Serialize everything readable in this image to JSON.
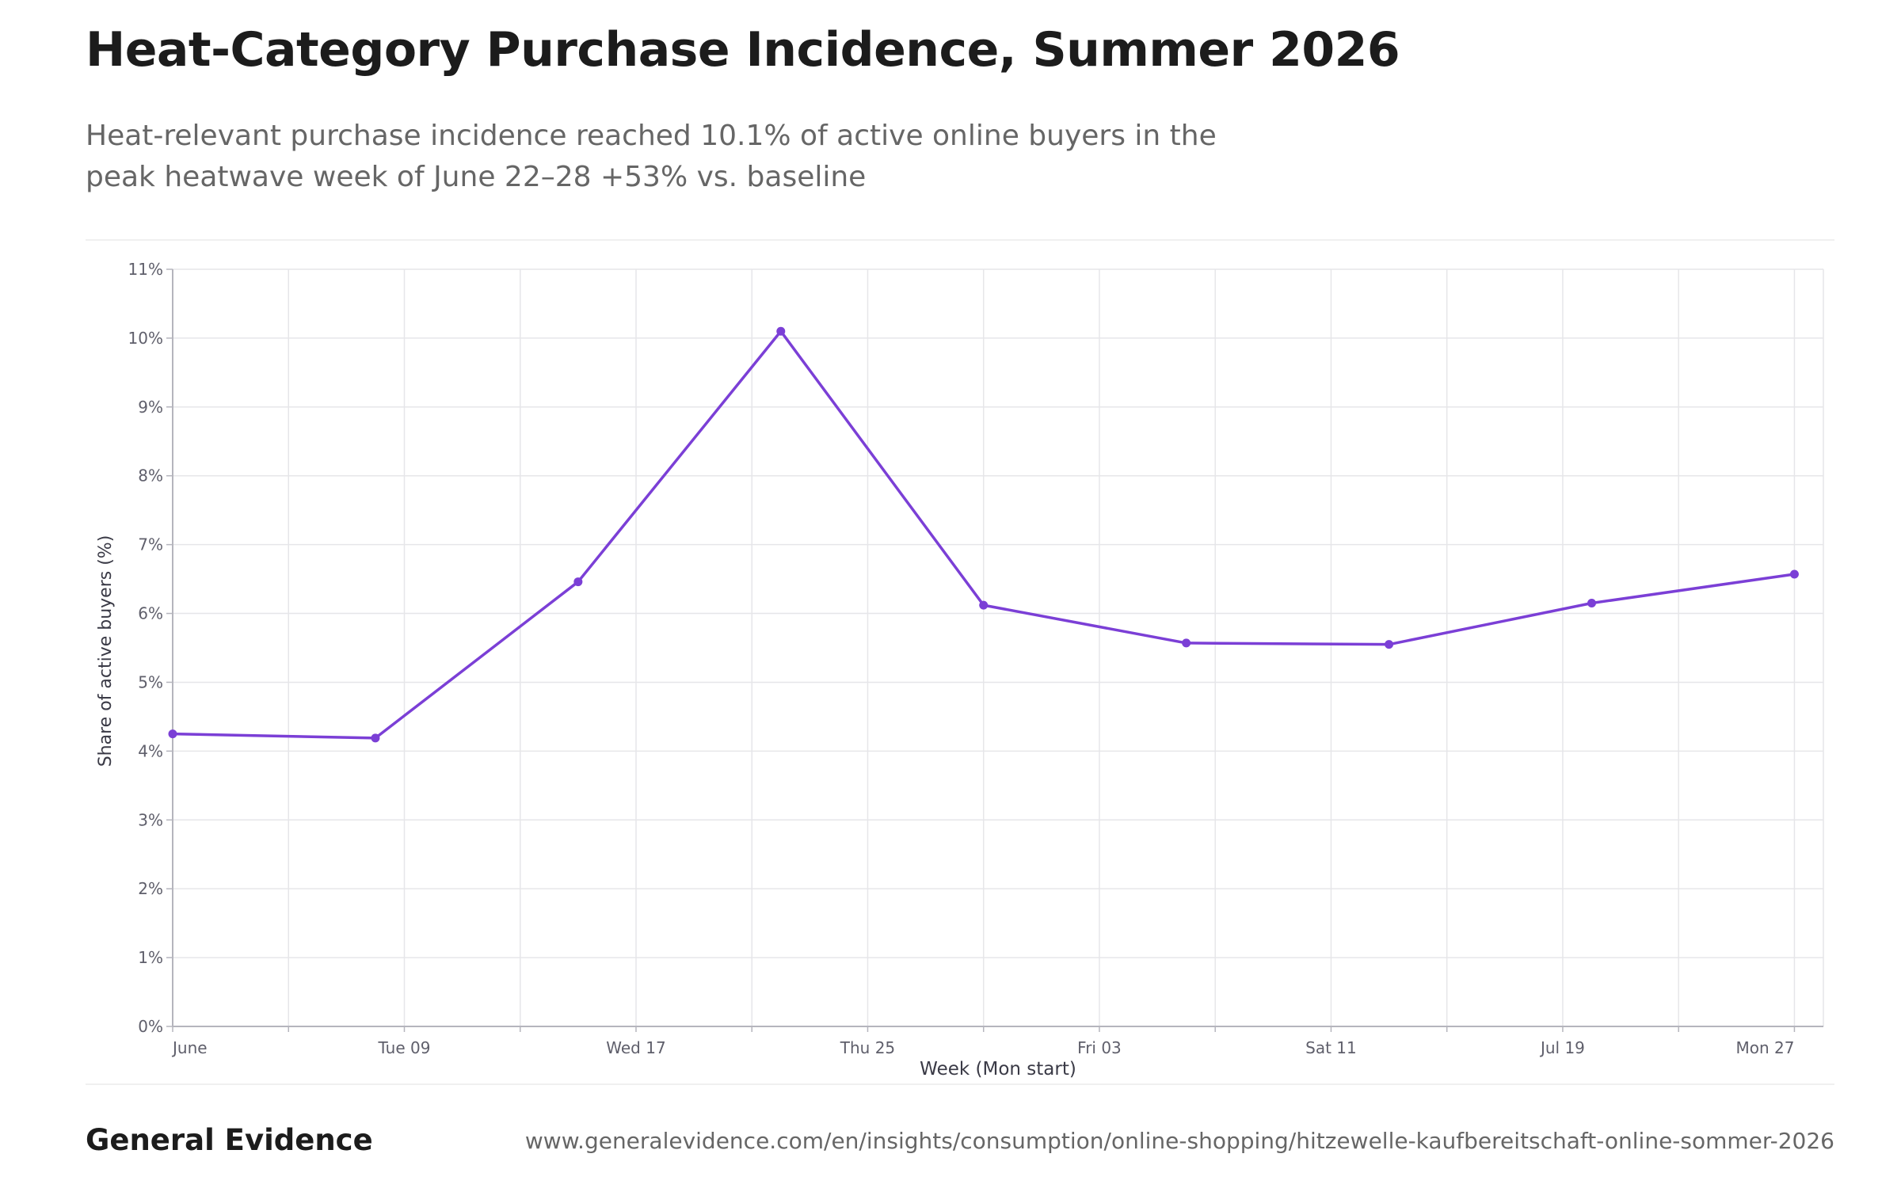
{
  "header": {
    "title": "Heat-Category Purchase Incidence, Summer 2026",
    "subtitle": "Heat-relevant purchase incidence reached 10.1% of active online buyers in the peak heatwave week of June 22–28 +53% vs. baseline"
  },
  "footer": {
    "brand": "General Evidence",
    "source": "www.generalevidence.com/en/insights/consumption/online-shopping/hitzewelle-kaufbereitschaft-online-sommer-2026"
  },
  "chart_data": {
    "type": "line",
    "xlabel": "Week (Mon start)",
    "ylabel": "Share of active buyers (%)",
    "ylim": [
      0,
      11
    ],
    "y_ticks": [
      "0%",
      "1%",
      "2%",
      "3%",
      "4%",
      "5%",
      "6%",
      "7%",
      "8%",
      "9%",
      "10%",
      "11%"
    ],
    "x_range": [
      "2026-06-01",
      "2026-07-28"
    ],
    "x_ticks": [
      {
        "date": "2026-06-01",
        "label": "June"
      },
      {
        "date": "2026-06-09",
        "label": "Tue 09"
      },
      {
        "date": "2026-06-17",
        "label": "Wed 17"
      },
      {
        "date": "2026-06-25",
        "label": "Thu 25"
      },
      {
        "date": "2026-07-03",
        "label": "Fri 03"
      },
      {
        "date": "2026-07-11",
        "label": "Sat 11"
      },
      {
        "date": "2026-07-19",
        "label": "Jul 19"
      },
      {
        "date": "2026-07-27",
        "label": "Mon 27"
      }
    ],
    "grid": true,
    "colors": {
      "line": "#7b3fd6",
      "grid": "#e6e6e9",
      "axis": "#b5b5bd",
      "tick_text": "#5f5f6b"
    },
    "series": [
      {
        "x": [
          "2026-06-01",
          "2026-06-08",
          "2026-06-15",
          "2026-06-22",
          "2026-06-29",
          "2026-07-06",
          "2026-07-13",
          "2026-07-20",
          "2026-07-27"
        ],
        "y": [
          4.25,
          4.19,
          6.46,
          10.1,
          6.12,
          5.57,
          5.55,
          6.15,
          6.57
        ]
      }
    ]
  }
}
